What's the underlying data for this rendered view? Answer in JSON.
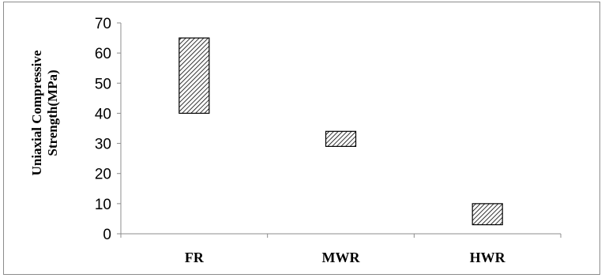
{
  "chart_data": {
    "type": "bar",
    "subtype": "floating-range",
    "categories": [
      "FR",
      "MWR",
      "HWR"
    ],
    "ranges": [
      {
        "category": "FR",
        "low": 40,
        "high": 65
      },
      {
        "category": "MWR",
        "low": 29,
        "high": 34
      },
      {
        "category": "HWR",
        "low": 3,
        "high": 10
      }
    ],
    "ylabel_lines": [
      "Uniaxial Compressive",
      "Strength(MPa)"
    ],
    "ylim": [
      0,
      70
    ],
    "yticks": [
      0,
      10,
      20,
      30,
      40,
      50,
      60,
      70
    ],
    "grid": false,
    "legend": "none",
    "bar_fill": "diagonal-hatch",
    "colors": {
      "bar_stroke": "#000000",
      "hatch": "#000000",
      "axis": "#8c8c8c"
    }
  }
}
